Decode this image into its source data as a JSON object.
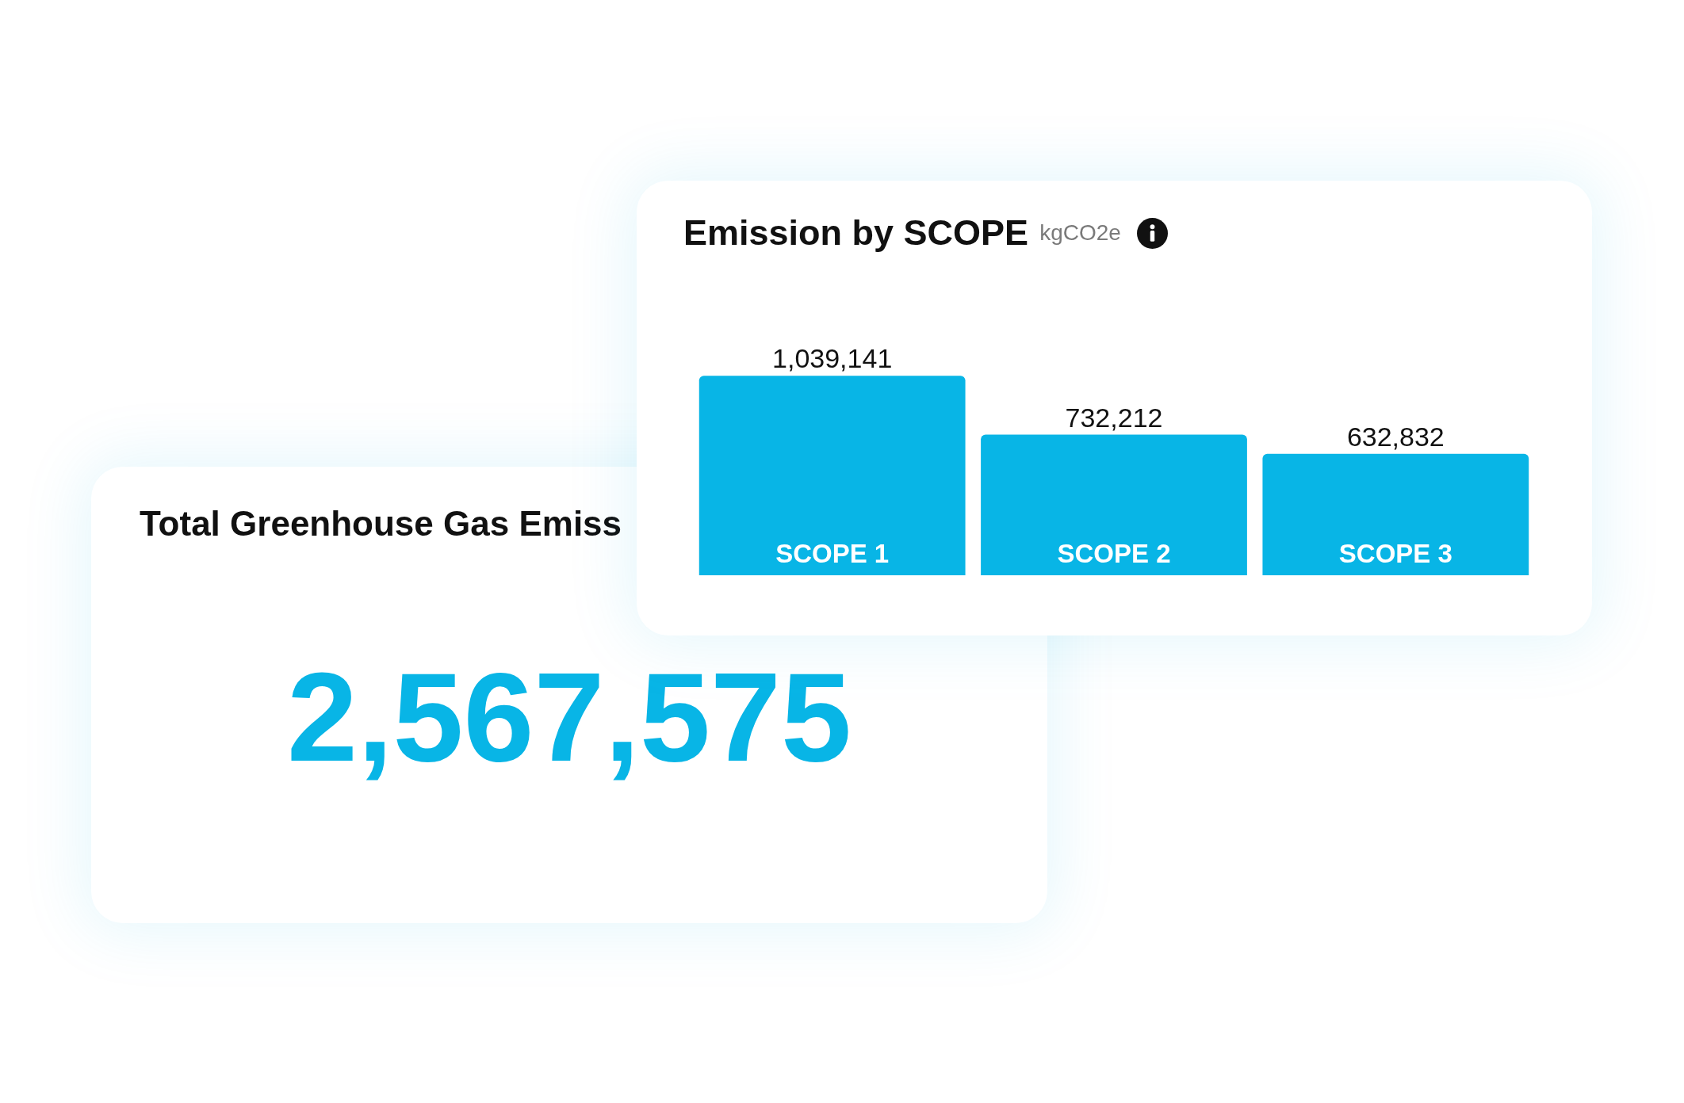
{
  "chart_data": [
    {
      "type": "bar",
      "title": "Emission by SCOPE",
      "subtitle": "kgCO2e",
      "categories": [
        "SCOPE 1",
        "SCOPE 2",
        "SCOPE 3"
      ],
      "values": [
        1039141,
        732212,
        632832
      ],
      "value_labels": [
        "1,039,141",
        "732,212",
        "632,832"
      ],
      "color": "#08b5e6"
    },
    {
      "type": "other",
      "title": "Total Greenhouse Gas Emiss",
      "annotations": [
        "2,567,575"
      ]
    }
  ]
}
